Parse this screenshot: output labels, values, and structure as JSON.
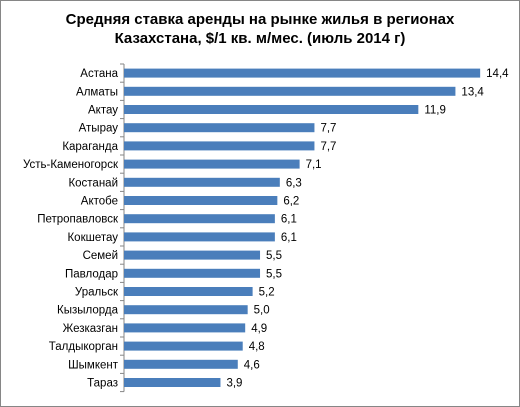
{
  "chart_data": {
    "type": "bar",
    "orientation": "horizontal",
    "title_line1": "Средняя ставка аренды на рынке жилья в регионах",
    "title_line2": "Казахстана, $/1 кв. м/мес. (июль 2014 г)",
    "categories": [
      "Астана",
      "Алматы",
      "Актау",
      "Атырау",
      "Караганда",
      "Усть-Каменогорск",
      "Костанай",
      "Актобе",
      "Петропавловск",
      "Кокшетау",
      "Семей",
      "Павлодар",
      "Уральск",
      "Кызылорда",
      "Жезказган",
      "Талдыкорган",
      "Шымкент",
      "Тараз"
    ],
    "values": [
      14.4,
      13.4,
      11.9,
      7.7,
      7.7,
      7.1,
      6.3,
      6.2,
      6.1,
      6.1,
      5.5,
      5.5,
      5.2,
      5.0,
      4.9,
      4.8,
      4.6,
      3.9
    ],
    "value_labels": [
      "14,4",
      "13,4",
      "11,9",
      "7,7",
      "7,7",
      "7,1",
      "6,3",
      "6,2",
      "6,1",
      "6,1",
      "5,5",
      "5,5",
      "5,2",
      "5,0",
      "4,9",
      "4,8",
      "4,6",
      "3,9"
    ],
    "xlim": [
      0,
      15
    ],
    "grid": false,
    "legend": "none",
    "bar_color": "#4a7ebb",
    "axis_color": "#868686"
  }
}
